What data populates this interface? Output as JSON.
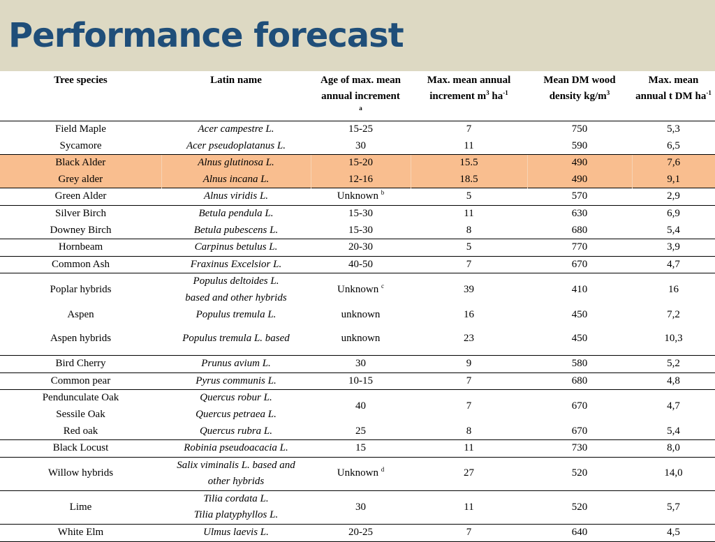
{
  "title": "Performance forecast",
  "header": {
    "species": "Tree species",
    "latin": "Latin name",
    "age": "Age of max. mean annual increment",
    "age_note": "a",
    "mai": "Max. mean annual increment m",
    "mai_sup": "3",
    "mai_tail": " ha",
    "mai_sup2": "-1",
    "density": "Mean DM wood density kg/m",
    "density_sup": "3",
    "tdm": "Max. mean annual t DM ha",
    "tdm_sup": "-1"
  },
  "rows": [
    {
      "species": "Field Maple",
      "latin": "Acer campestre L.",
      "age": "15-25",
      "mai": "7",
      "density": "750",
      "tdm": "5,3"
    },
    {
      "species": "Sycamore",
      "latin": "Acer pseudoplatanus L.",
      "age": "30",
      "mai": "11",
      "density": "590",
      "tdm": "6,5"
    },
    {
      "species": "Black Alder",
      "latin": "Alnus glutinosa L.",
      "age": "15-20",
      "mai": "15.5",
      "density": "490",
      "tdm": "7,6"
    },
    {
      "species": "Grey alder",
      "latin": "Alnus incana L.",
      "age": "12-16",
      "mai": "18.5",
      "density": "490",
      "tdm": "9,1"
    },
    {
      "species": "Green Alder",
      "latin": "Alnus viridis L.",
      "age": "Unknown",
      "age_note": "b",
      "mai": "5",
      "density": "570",
      "tdm": "2,9"
    },
    {
      "species": "Silver Birch",
      "latin": "Betula pendula L.",
      "age": "15-30",
      "mai": "11",
      "density": "630",
      "tdm": "6,9"
    },
    {
      "species": "Downey Birch",
      "latin": "Betula pubescens L.",
      "age": "15-30",
      "mai": "8",
      "density": "680",
      "tdm": "5,4"
    },
    {
      "species": "Hornbeam",
      "latin": "Carpinus betulus L.",
      "age": "20-30",
      "mai": "5",
      "density": "770",
      "tdm": "3,9"
    },
    {
      "species": "Common Ash",
      "latin": "Fraxinus Excelsior L.",
      "age": "40-50",
      "mai": "7",
      "density": "670",
      "tdm": "4,7"
    },
    {
      "species": "Poplar hybrids",
      "latin": "Populus deltoides L. based and other hybrids",
      "age": "Unknown",
      "age_note": "c",
      "mai": "39",
      "density": "410",
      "tdm": "16"
    },
    {
      "species": "Aspen",
      "latin": "Populus tremula L.",
      "age": "unknown",
      "mai": "16",
      "density": "450",
      "tdm": "7,2"
    },
    {
      "species": "Aspen hybrids",
      "latin": "Populus tremula L. based",
      "age": "unknown",
      "mai": "23",
      "density": "450",
      "tdm": "10,3"
    },
    {
      "species": "Bird Cherry",
      "latin": "Prunus avium L.",
      "age": "30",
      "mai": "9",
      "density": "580",
      "tdm": "5,2"
    },
    {
      "species": "Common pear",
      "latin": "Pyrus communis L.",
      "age": "10-15",
      "mai": "7",
      "density": "680",
      "tdm": "4,8"
    },
    {
      "species": "Pendunculate Oak",
      "latin": "Quercus robur L.",
      "age": "40",
      "mai": "7",
      "density": "670",
      "tdm": "4,7"
    },
    {
      "species": "Sessile Oak",
      "latin": "Quercus petraea L."
    },
    {
      "species": "Red oak",
      "latin": "Quercus rubra L.",
      "age": "25",
      "mai": "8",
      "density": "670",
      "tdm": "5,4"
    },
    {
      "species": "Black Locust",
      "latin": "Robinia pseudoacacia L.",
      "age": "15",
      "mai": "11",
      "density": "730",
      "tdm": "8,0"
    },
    {
      "species": "Willow hybrids",
      "latin": "Salix viminalis L. based and other hybrids",
      "age": "Unknown",
      "age_note": "d",
      "mai": "27",
      "density": "520",
      "tdm": "14,0"
    },
    {
      "species": "Lime",
      "latin": "Tilia cordata L.",
      "latin2": "Tilia platyphyllos L.",
      "age": "30",
      "mai": "11",
      "density": "520",
      "tdm": "5,7"
    },
    {
      "species": "White Elm",
      "latin": "Ulmus laevis L.",
      "age": "20-25",
      "mai": "7",
      "density": "640",
      "tdm": "4,5"
    }
  ]
}
